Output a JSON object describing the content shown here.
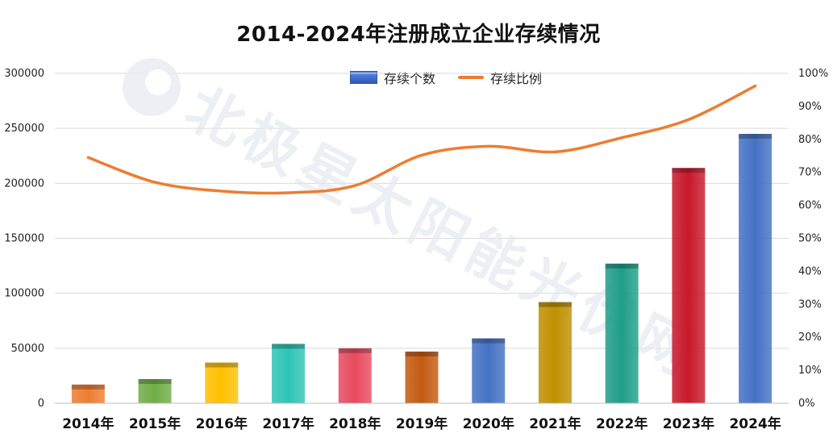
{
  "chart_data": {
    "type": "bar",
    "title": "2014-2024年注册成立企业存续情况",
    "categories": [
      "2014年",
      "2015年",
      "2016年",
      "2017年",
      "2018年",
      "2019年",
      "2020年",
      "2021年",
      "2022年",
      "2023年",
      "2024年"
    ],
    "series": [
      {
        "name": "存续个数",
        "type": "bar",
        "axis": "left",
        "values": [
          17000,
          22000,
          37000,
          54000,
          50000,
          47000,
          59000,
          92000,
          127000,
          214000,
          245000
        ],
        "colors": [
          "#ed7d31",
          "#70ad47",
          "#ffc000",
          "#2ec4b6",
          "#e84a5f",
          "#c55a11",
          "#4472c4",
          "#bf9000",
          "#1f9e89",
          "#c9182b",
          "#4472c4"
        ]
      },
      {
        "name": "存续比例",
        "type": "line",
        "axis": "right",
        "values": [
          74.5,
          67,
          64.3,
          63.8,
          66,
          75.2,
          77.9,
          76.2,
          80.5,
          86,
          96.2
        ],
        "color": "#ed7d31"
      }
    ],
    "y_left": {
      "ylim": [
        0,
        300000
      ],
      "ticks": [
        "0",
        "50000",
        "100000",
        "150000",
        "200000",
        "250000",
        "300000"
      ]
    },
    "y_right": {
      "ylim": [
        0,
        100
      ],
      "ticks": [
        "0%",
        "10%",
        "20%",
        "30%",
        "40%",
        "50%",
        "60%",
        "70%",
        "80%",
        "90%",
        "100%"
      ]
    },
    "grid": true,
    "legend_position": "top-center"
  },
  "watermark": "北极星太阳能光伏网"
}
